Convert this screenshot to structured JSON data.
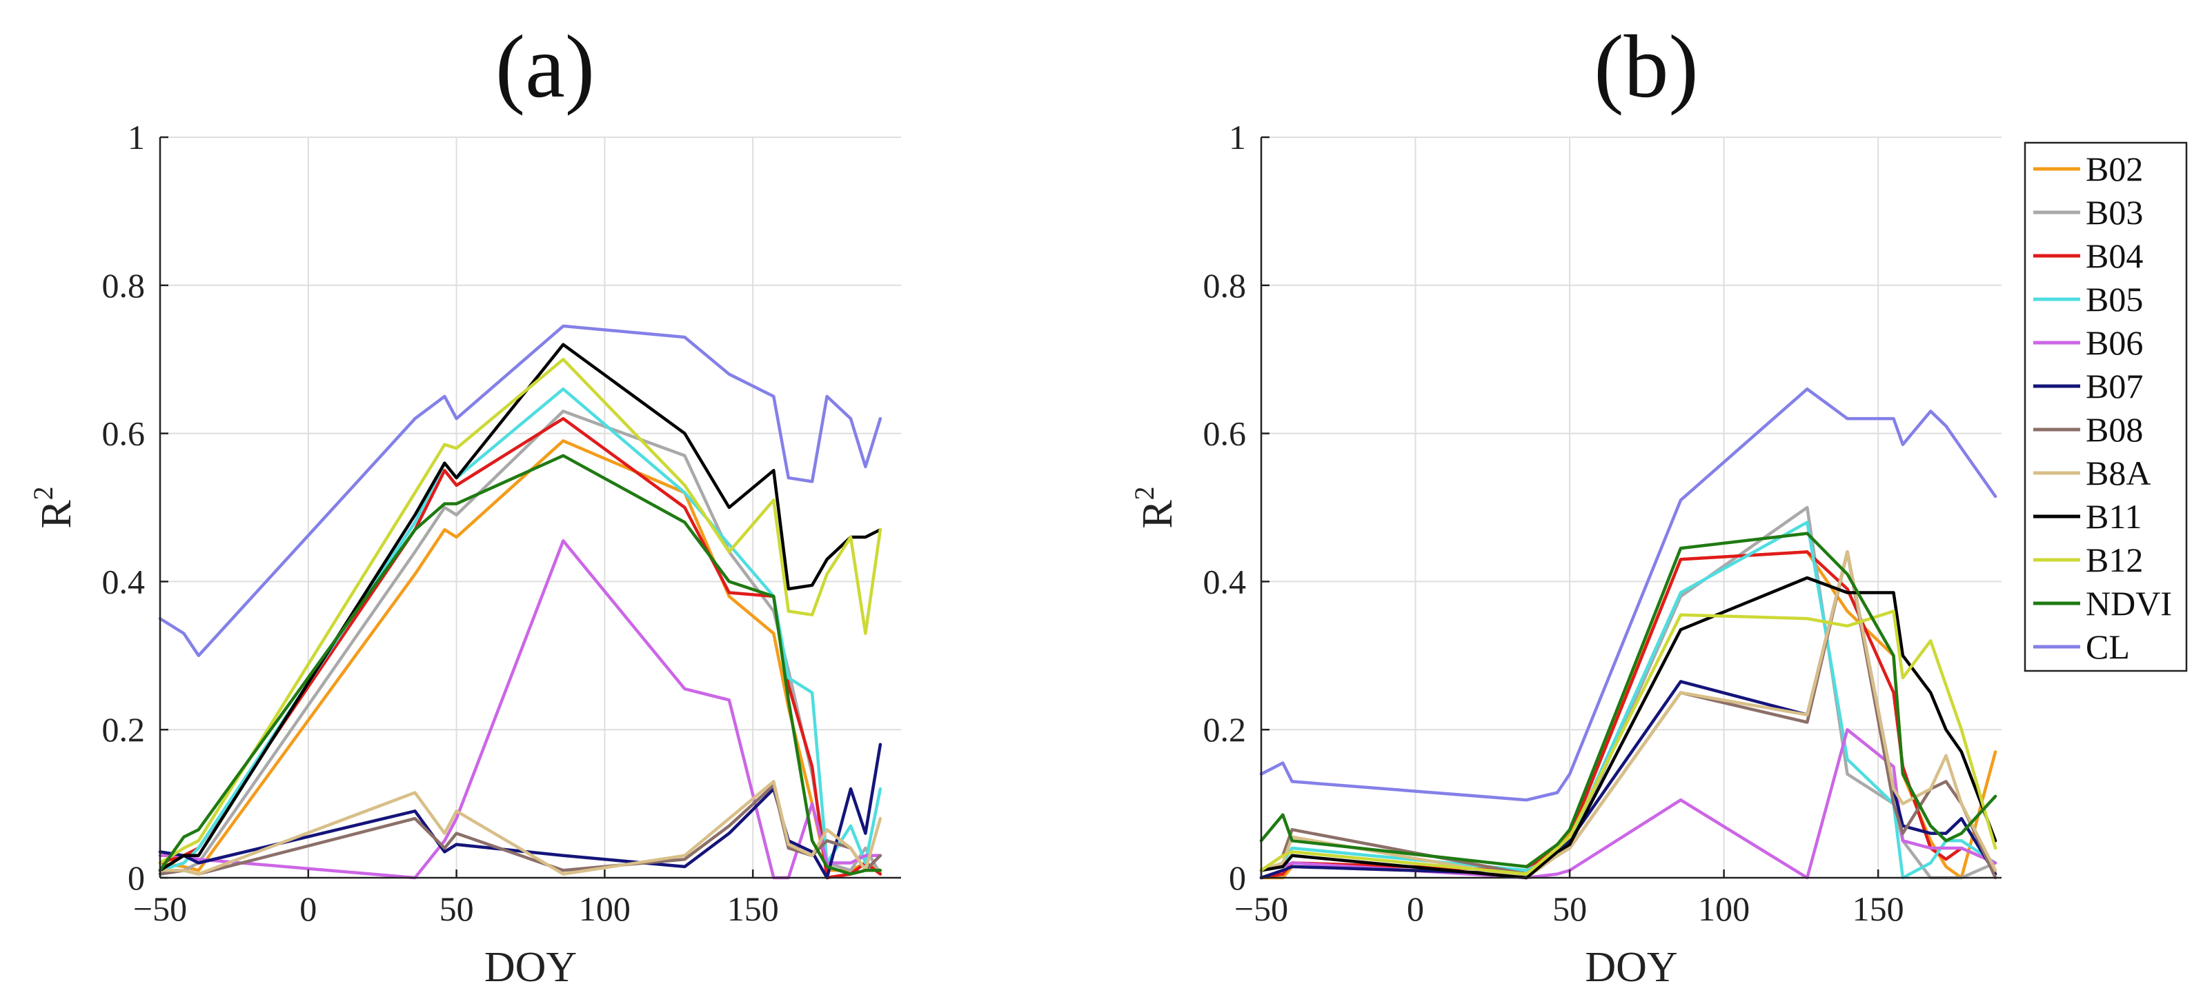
{
  "chart_data": {
    "type": "line",
    "colors": {
      "B02": "#f39c1a",
      "B03": "#a9a9a9",
      "B04": "#e01b1b",
      "B05": "#4fdde0",
      "B06": "#cc66e6",
      "B07": "#14147a",
      "B08": "#8c6f69",
      "B8A": "#d8bf88",
      "B11": "#000000",
      "B12": "#cdd935",
      "NDVI": "#1f7a12",
      "CL": "#8480e8"
    },
    "legend": [
      "B02",
      "B03",
      "B04",
      "B05",
      "B06",
      "B07",
      "B08",
      "B8A",
      "B11",
      "B12",
      "NDVI",
      "CL"
    ],
    "panels": [
      {
        "title": "(a)",
        "xlabel": "DOY",
        "ylabel": "R",
        "ylabel_sup": "2",
        "xlim": [
          -50,
          200
        ],
        "ylim": [
          0,
          1
        ],
        "xticks": [
          -50,
          0,
          50,
          100,
          150
        ],
        "yticks": [
          0,
          0.2,
          0.4,
          0.6,
          0.8,
          1
        ],
        "ytick_labels": [
          "0",
          "0.2",
          "0.4",
          "0.6",
          "0.8",
          "1"
        ],
        "xtick_labels": [
          "−50",
          "0",
          "50",
          "100",
          "150"
        ],
        "series": [
          {
            "name": "CL",
            "x": [
              -50,
              -42,
              -37,
              36,
              46,
              50,
              86,
              127,
              142,
              157,
              162,
              170,
              175,
              183,
              188,
              193
            ],
            "y": [
              0.35,
              0.33,
              0.3,
              0.62,
              0.65,
              0.62,
              0.745,
              0.73,
              0.68,
              0.65,
              0.54,
              0.535,
              0.65,
              0.62,
              0.555,
              0.62
            ]
          },
          {
            "name": "B02",
            "x": [
              -50,
              -42,
              -37,
              36,
              46,
              50,
              86,
              127,
              142,
              157,
              162,
              170,
              175,
              183,
              188,
              193
            ],
            "y": [
              0.02,
              0.015,
              0.01,
              0.41,
              0.47,
              0.46,
              0.59,
              0.52,
              0.38,
              0.33,
              0.23,
              0.1,
              0.01,
              0.01,
              0.02,
              0.01
            ]
          },
          {
            "name": "B03",
            "x": [
              -50,
              -42,
              -37,
              36,
              46,
              50,
              86,
              127,
              142,
              157,
              162,
              170,
              175,
              183,
              188,
              193
            ],
            "y": [
              0.005,
              0.01,
              0.02,
              0.44,
              0.5,
              0.49,
              0.63,
              0.57,
              0.44,
              0.36,
              0.28,
              0.14,
              0.02,
              0.01,
              0.04,
              0.005
            ]
          },
          {
            "name": "B04",
            "x": [
              -50,
              -42,
              -37,
              36,
              46,
              50,
              86,
              127,
              142,
              157,
              162,
              170,
              175,
              183,
              188,
              193
            ],
            "y": [
              0.02,
              0.03,
              0.04,
              0.47,
              0.55,
              0.53,
              0.62,
              0.5,
              0.385,
              0.38,
              0.26,
              0.15,
              0.0,
              0.005,
              0.02,
              0.005
            ]
          },
          {
            "name": "B05",
            "x": [
              -50,
              -42,
              -37,
              36,
              46,
              50,
              86,
              127,
              142,
              157,
              162,
              170,
              175,
              183,
              188,
              193
            ],
            "y": [
              0.01,
              0.02,
              0.04,
              0.48,
              0.56,
              0.54,
              0.66,
              0.52,
              0.45,
              0.38,
              0.27,
              0.25,
              0.02,
              0.07,
              0.02,
              0.12
            ]
          },
          {
            "name": "B06",
            "x": [
              -50,
              -42,
              -37,
              36,
              46,
              50,
              86,
              127,
              142,
              157,
              162,
              170,
              175,
              183,
              188,
              193
            ],
            "y": [
              0.03,
              0.03,
              0.025,
              0.0,
              0.05,
              0.08,
              0.455,
              0.255,
              0.24,
              0.0,
              0.0,
              0.1,
              0.02,
              0.02,
              0.03,
              0.03
            ]
          },
          {
            "name": "B07",
            "x": [
              -50,
              -42,
              -37,
              36,
              46,
              50,
              86,
              127,
              142,
              157,
              162,
              170,
              175,
              183,
              188,
              193
            ],
            "y": [
              0.035,
              0.03,
              0.02,
              0.09,
              0.035,
              0.045,
              0.03,
              0.015,
              0.06,
              0.12,
              0.05,
              0.035,
              0.0,
              0.12,
              0.06,
              0.18
            ]
          },
          {
            "name": "B08",
            "x": [
              -50,
              -42,
              -37,
              36,
              46,
              50,
              86,
              127,
              142,
              157,
              162,
              170,
              175,
              183,
              188,
              193
            ],
            "y": [
              0.005,
              0.01,
              0.005,
              0.08,
              0.04,
              0.06,
              0.01,
              0.025,
              0.07,
              0.125,
              0.04,
              0.03,
              0.05,
              0.04,
              0.01,
              0.03
            ]
          },
          {
            "name": "B8A",
            "x": [
              -50,
              -42,
              -37,
              36,
              46,
              50,
              86,
              127,
              142,
              157,
              162,
              170,
              175,
              183,
              188,
              193
            ],
            "y": [
              0.01,
              0.01,
              0.005,
              0.115,
              0.06,
              0.09,
              0.005,
              0.03,
              0.08,
              0.13,
              0.045,
              0.03,
              0.065,
              0.04,
              0.01,
              0.08
            ]
          },
          {
            "name": "B11",
            "x": [
              -50,
              -42,
              -37,
              36,
              46,
              50,
              86,
              127,
              142,
              157,
              162,
              170,
              175,
              183,
              188,
              193
            ],
            "y": [
              0.01,
              0.03,
              0.03,
              0.49,
              0.56,
              0.54,
              0.72,
              0.6,
              0.5,
              0.55,
              0.39,
              0.395,
              0.43,
              0.46,
              0.46,
              0.47
            ]
          },
          {
            "name": "B12",
            "x": [
              -50,
              -42,
              -37,
              36,
              46,
              50,
              86,
              127,
              142,
              157,
              162,
              170,
              175,
              183,
              188,
              193
            ],
            "y": [
              0.02,
              0.04,
              0.05,
              0.52,
              0.585,
              0.58,
              0.7,
              0.53,
              0.44,
              0.51,
              0.36,
              0.355,
              0.41,
              0.46,
              0.33,
              0.47
            ]
          },
          {
            "name": "NDVI",
            "x": [
              -50,
              -42,
              -37,
              36,
              46,
              50,
              86,
              127,
              142,
              157,
              162,
              170,
              175,
              183,
              188,
              193
            ],
            "y": [
              0.01,
              0.055,
              0.065,
              0.47,
              0.505,
              0.505,
              0.57,
              0.48,
              0.4,
              0.38,
              0.24,
              0.05,
              0.015,
              0.005,
              0.01,
              0.01
            ]
          }
        ]
      },
      {
        "title": "(b)",
        "xlabel": "DOY",
        "ylabel": "R",
        "ylabel_sup": "2",
        "xlim": [
          -50,
          190
        ],
        "ylim": [
          0,
          1
        ],
        "xticks": [
          -50,
          0,
          50,
          100,
          150
        ],
        "yticks": [
          0,
          0.2,
          0.4,
          0.6,
          0.8,
          1
        ],
        "ytick_labels": [
          "0",
          "0.2",
          "0.4",
          "0.6",
          "0.8",
          "1"
        ],
        "xtick_labels": [
          "−50",
          "0",
          "50",
          "100",
          "150"
        ],
        "series": [
          {
            "name": "CL",
            "x": [
              -50,
              -43,
              -40,
              36,
              46,
              50,
              86,
              127,
              140,
              155,
              158,
              167,
              172,
              177,
              188
            ],
            "y": [
              0.14,
              0.155,
              0.13,
              0.105,
              0.115,
              0.14,
              0.51,
              0.66,
              0.62,
              0.62,
              0.585,
              0.63,
              0.61,
              0.58,
              0.515
            ]
          },
          {
            "name": "B02",
            "x": [
              -50,
              -43,
              -40,
              36,
              46,
              50,
              86,
              127,
              140,
              155,
              158,
              167,
              172,
              177,
              188
            ],
            "y": [
              0.0,
              0.0,
              0.015,
              0.005,
              0.04,
              0.06,
              0.43,
              0.44,
              0.36,
              0.3,
              0.14,
              0.05,
              0.015,
              0.0,
              0.17
            ]
          },
          {
            "name": "B03",
            "x": [
              -50,
              -43,
              -40,
              36,
              46,
              50,
              86,
              127,
              140,
              155,
              158,
              167,
              172,
              177,
              188
            ],
            "y": [
              0.0,
              0.005,
              0.02,
              0.01,
              0.03,
              0.04,
              0.38,
              0.5,
              0.14,
              0.1,
              0.05,
              0.0,
              0.0,
              0.0,
              0.02
            ]
          },
          {
            "name": "B04",
            "x": [
              -50,
              -43,
              -40,
              36,
              46,
              50,
              86,
              127,
              140,
              155,
              158,
              167,
              172,
              177,
              188
            ],
            "y": [
              0.0,
              0.005,
              0.02,
              0.01,
              0.04,
              0.055,
              0.43,
              0.44,
              0.39,
              0.25,
              0.15,
              0.04,
              0.025,
              0.04,
              0.02
            ]
          },
          {
            "name": "B05",
            "x": [
              -50,
              -43,
              -40,
              36,
              46,
              50,
              86,
              127,
              140,
              155,
              158,
              167,
              172,
              177,
              188
            ],
            "y": [
              0.01,
              0.02,
              0.04,
              0.01,
              0.03,
              0.05,
              0.385,
              0.48,
              0.16,
              0.1,
              0.0,
              0.02,
              0.05,
              0.05,
              0.02
            ]
          },
          {
            "name": "B06",
            "x": [
              -50,
              -43,
              -40,
              36,
              46,
              50,
              86,
              127,
              140,
              155,
              158,
              167,
              172,
              177,
              188
            ],
            "y": [
              0.01,
              0.015,
              0.02,
              0.0,
              0.005,
              0.01,
              0.105,
              0.0,
              0.2,
              0.15,
              0.05,
              0.04,
              0.04,
              0.04,
              0.02
            ]
          },
          {
            "name": "B07",
            "x": [
              -50,
              -43,
              -40,
              36,
              46,
              50,
              86,
              127,
              140,
              155,
              158,
              167,
              172,
              177,
              188
            ],
            "y": [
              0.0,
              0.01,
              0.015,
              0.005,
              0.04,
              0.05,
              0.265,
              0.22,
              0.44,
              0.12,
              0.07,
              0.06,
              0.06,
              0.08,
              0.005
            ]
          },
          {
            "name": "B08",
            "x": [
              -50,
              -43,
              -40,
              36,
              46,
              50,
              86,
              127,
              140,
              155,
              158,
              167,
              172,
              177,
              188
            ],
            "y": [
              0.01,
              0.03,
              0.065,
              0.005,
              0.03,
              0.04,
              0.25,
              0.21,
              0.44,
              0.1,
              0.06,
              0.12,
              0.13,
              0.1,
              0.0
            ]
          },
          {
            "name": "B8A",
            "x": [
              -50,
              -43,
              -40,
              36,
              46,
              50,
              86,
              127,
              140,
              155,
              158,
              167,
              172,
              177,
              188
            ],
            "y": [
              0.01,
              0.02,
              0.055,
              0.0,
              0.03,
              0.04,
              0.25,
              0.22,
              0.44,
              0.12,
              0.1,
              0.12,
              0.165,
              0.1,
              0.01
            ]
          },
          {
            "name": "B11",
            "x": [
              -50,
              -43,
              -40,
              36,
              46,
              50,
              86,
              127,
              140,
              155,
              158,
              167,
              172,
              177,
              188
            ],
            "y": [
              0.01,
              0.015,
              0.03,
              0.0,
              0.035,
              0.045,
              0.335,
              0.405,
              0.385,
              0.385,
              0.3,
              0.25,
              0.2,
              0.17,
              0.05
            ]
          },
          {
            "name": "B12",
            "x": [
              -50,
              -43,
              -40,
              36,
              46,
              50,
              86,
              127,
              140,
              155,
              158,
              167,
              172,
              177,
              188
            ],
            "y": [
              0.01,
              0.03,
              0.035,
              0.005,
              0.04,
              0.055,
              0.355,
              0.35,
              0.34,
              0.36,
              0.27,
              0.32,
              0.26,
              0.2,
              0.04
            ]
          },
          {
            "name": "NDVI",
            "x": [
              -50,
              -43,
              -40,
              36,
              46,
              50,
              86,
              127,
              140,
              155,
              158,
              167,
              172,
              177,
              188
            ],
            "y": [
              0.05,
              0.085,
              0.05,
              0.015,
              0.045,
              0.065,
              0.445,
              0.465,
              0.41,
              0.3,
              0.14,
              0.07,
              0.05,
              0.06,
              0.11
            ]
          }
        ]
      }
    ]
  }
}
